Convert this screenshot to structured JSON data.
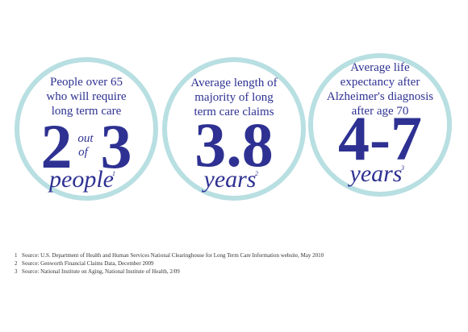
{
  "circles": [
    {
      "lines": [
        "People over 65",
        "who will require",
        "long term care"
      ],
      "figure": "2",
      "connector": [
        "out",
        "of"
      ],
      "figure_end": "3",
      "unit": "people",
      "note": "1"
    },
    {
      "lines": [
        "Average length of",
        "majority of long",
        "term care claims"
      ],
      "figure": "3.8",
      "unit": "years",
      "note": "2"
    },
    {
      "lines": [
        "Average life",
        "expectancy after",
        "Alzheimer's diagnosis",
        "after age 70"
      ],
      "figure": "4-7",
      "unit": "years",
      "note": "3"
    }
  ],
  "footnotes": [
    {
      "number": "1",
      "text": "Source: U.S. Department of Health and Human Services National Clearinghouse for Long Term Care Information website, May 2010"
    },
    {
      "number": "2",
      "text": "Source: Genworth Financial Claims Data, December 2009"
    },
    {
      "number": "3",
      "text": "Source: National Institute on Aging, National Institute of Health, 2/09"
    }
  ]
}
